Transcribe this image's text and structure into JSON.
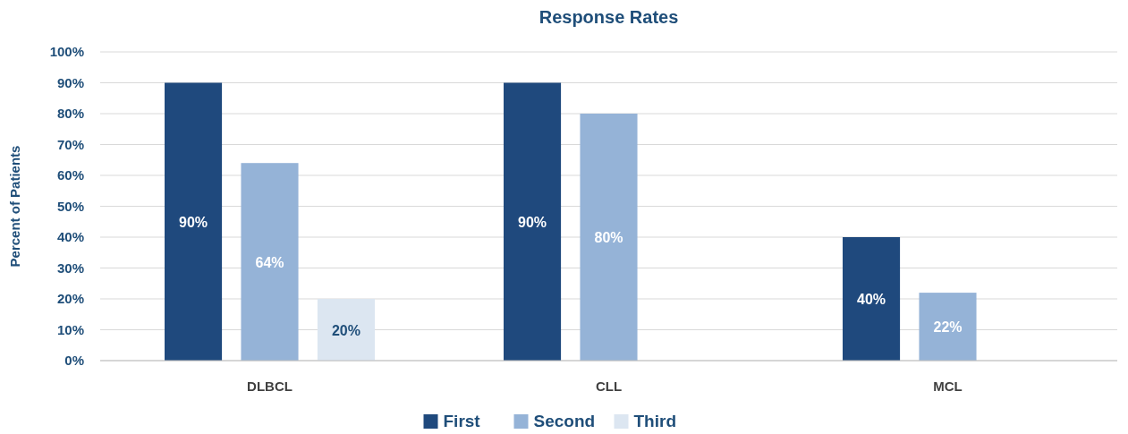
{
  "chart_data": {
    "type": "bar",
    "title": "Response Rates",
    "ylabel": "Percent of Patients",
    "categories": [
      "DLBCL",
      "CLL",
      "MCL"
    ],
    "series": [
      {
        "name": "First",
        "color": "#1f497d",
        "values": [
          90,
          90,
          40
        ]
      },
      {
        "name": "Second",
        "color": "#95b3d7",
        "values": [
          64,
          80,
          22
        ]
      },
      {
        "name": "Third",
        "color": "#dce6f1",
        "values": [
          20,
          null,
          null
        ]
      }
    ],
    "ylim": [
      0,
      100
    ],
    "yticks": [
      {
        "value": 0,
        "label": "0%"
      },
      {
        "value": 10,
        "label": "10%"
      },
      {
        "value": 20,
        "label": "20%"
      },
      {
        "value": 30,
        "label": "30%"
      },
      {
        "value": 40,
        "label": "40%"
      },
      {
        "value": 50,
        "label": "50%"
      },
      {
        "value": 60,
        "label": "60%"
      },
      {
        "value": 70,
        "label": "70%"
      },
      {
        "value": 80,
        "label": "80%"
      },
      {
        "value": 90,
        "label": "90%"
      },
      {
        "value": 100,
        "label": "100%"
      }
    ],
    "value_labels": [
      [
        "90%",
        "90%",
        "40%"
      ],
      [
        "64%",
        "80%",
        "22%"
      ],
      [
        "20%",
        null,
        null
      ]
    ],
    "grid": "y",
    "legend": "bottom"
  }
}
